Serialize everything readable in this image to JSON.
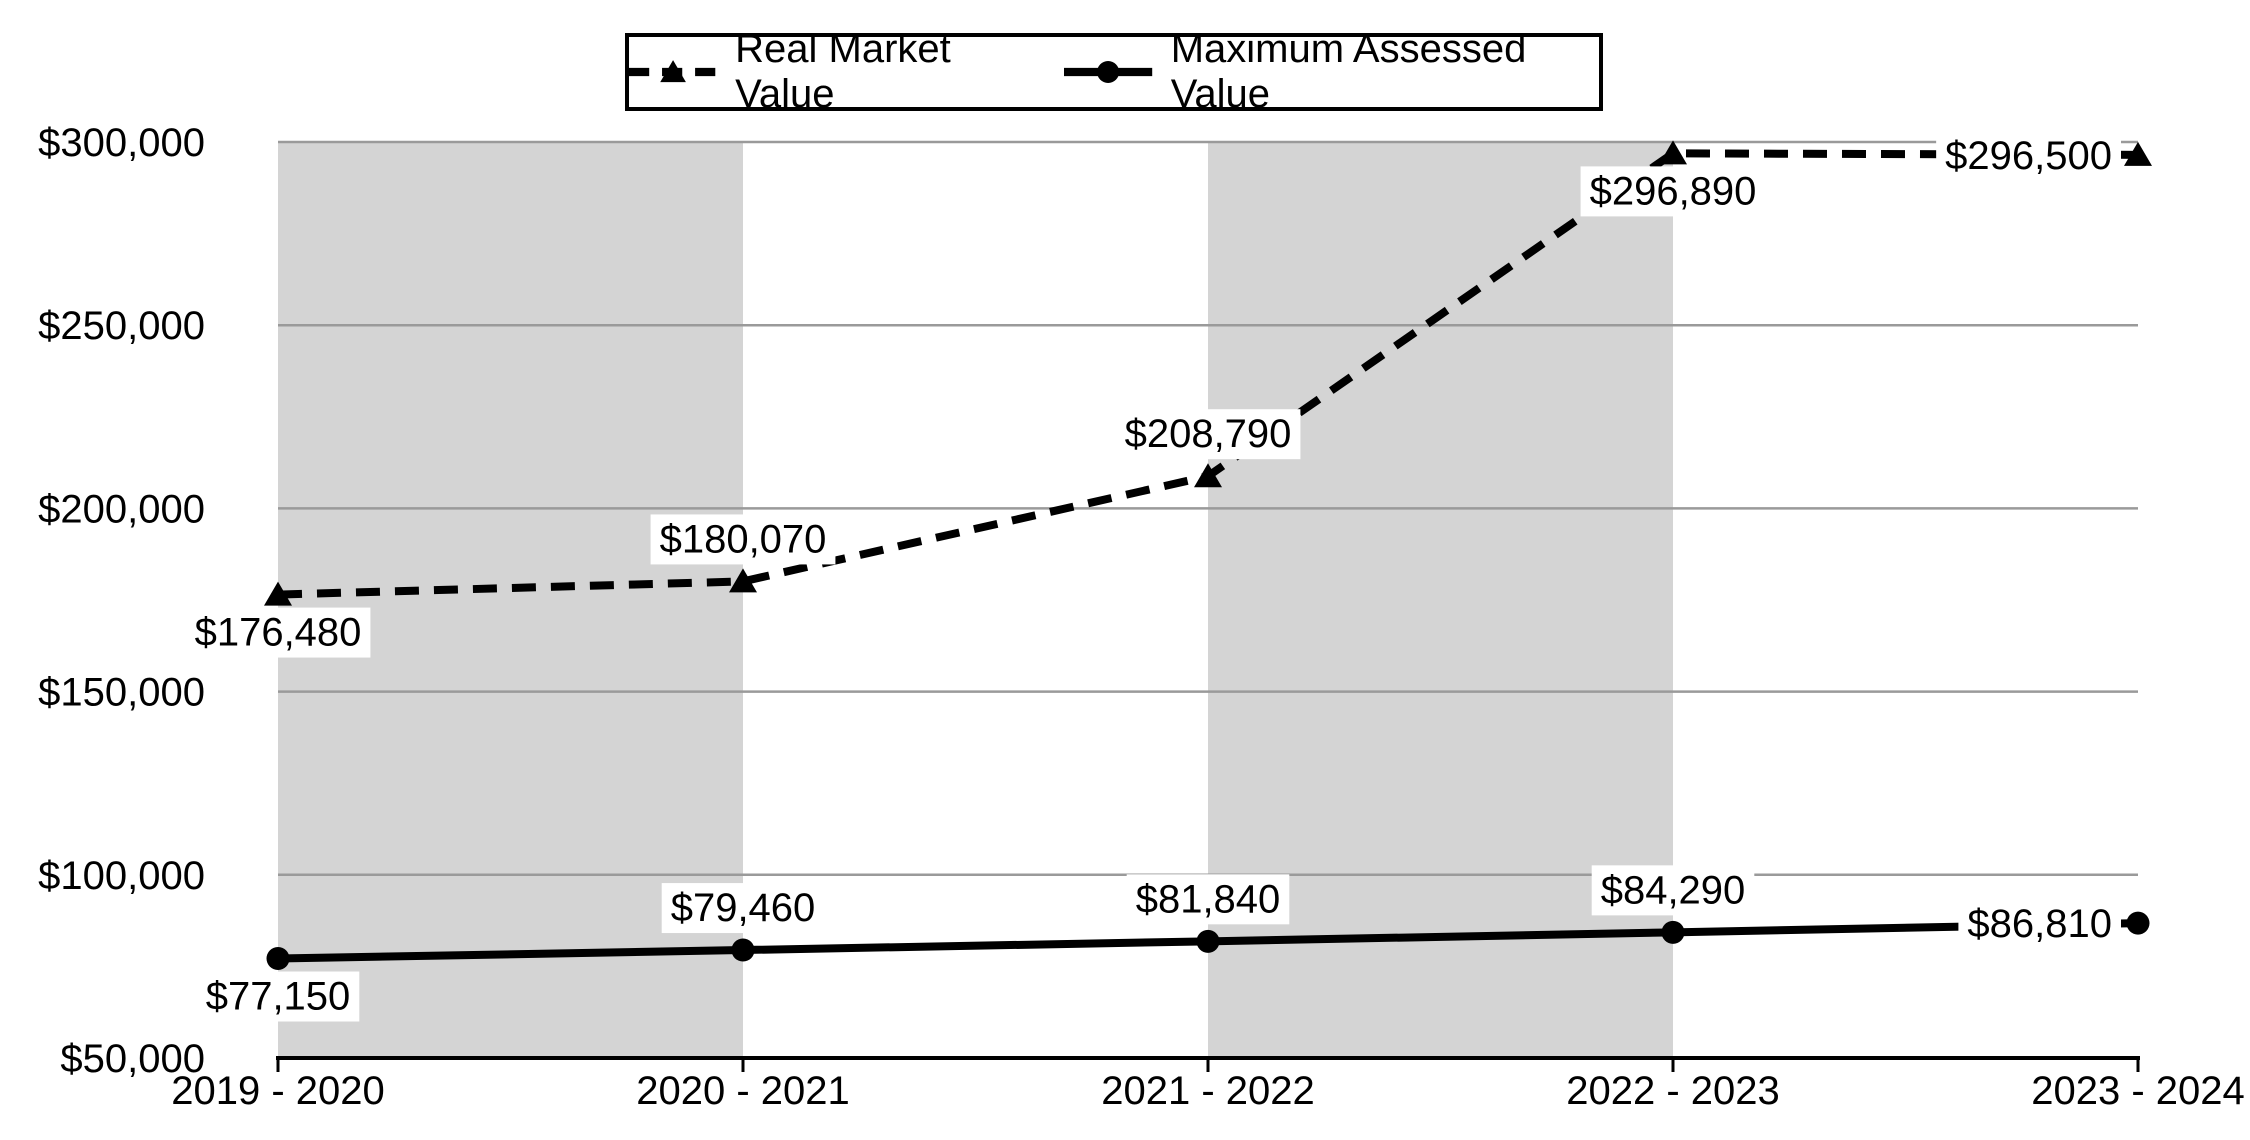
{
  "chart_data": {
    "type": "line",
    "title": "",
    "categories": [
      "2019 - 2020",
      "2020 - 2021",
      "2021 - 2022",
      "2022 - 2023",
      "2023 - 2024"
    ],
    "series": [
      {
        "name": "Real Market Value",
        "values": [
          176480,
          180070,
          208790,
          296890,
          296500
        ],
        "labels": [
          "$176,480",
          "$180,070",
          "$208,790",
          "$296,890",
          "$296,500"
        ],
        "label_positions": [
          "below",
          "above",
          "above",
          "below",
          "left"
        ],
        "line_style": "dashed",
        "marker": "triangle"
      },
      {
        "name": "Maximum Assessed Value",
        "values": [
          77150,
          79460,
          81840,
          84290,
          86810
        ],
        "labels": [
          "$77,150",
          "$79,460",
          "$81,840",
          "$84,290",
          "$86,810"
        ],
        "label_positions": [
          "below",
          "above",
          "above",
          "above",
          "left"
        ],
        "line_style": "solid",
        "marker": "circle"
      }
    ],
    "ylim": [
      50000,
      300000
    ],
    "ytick_step": 50000,
    "ytick_labels": [
      "$50,000",
      "$100,000",
      "$150,000",
      "$200,000",
      "$250,000",
      "$300,000"
    ],
    "xlabel": "",
    "ylabel": "",
    "grid": "horizontal",
    "legend_position": "top-center",
    "bands": {
      "pairs": [
        [
          0,
          1
        ],
        [
          2,
          3
        ]
      ],
      "color": "#d4d4d4"
    },
    "colors": {
      "series": "#000000",
      "gridline": "#9a9a9a",
      "axis": "#000000",
      "label_background": "#ffffff",
      "background": "#ffffff"
    }
  }
}
